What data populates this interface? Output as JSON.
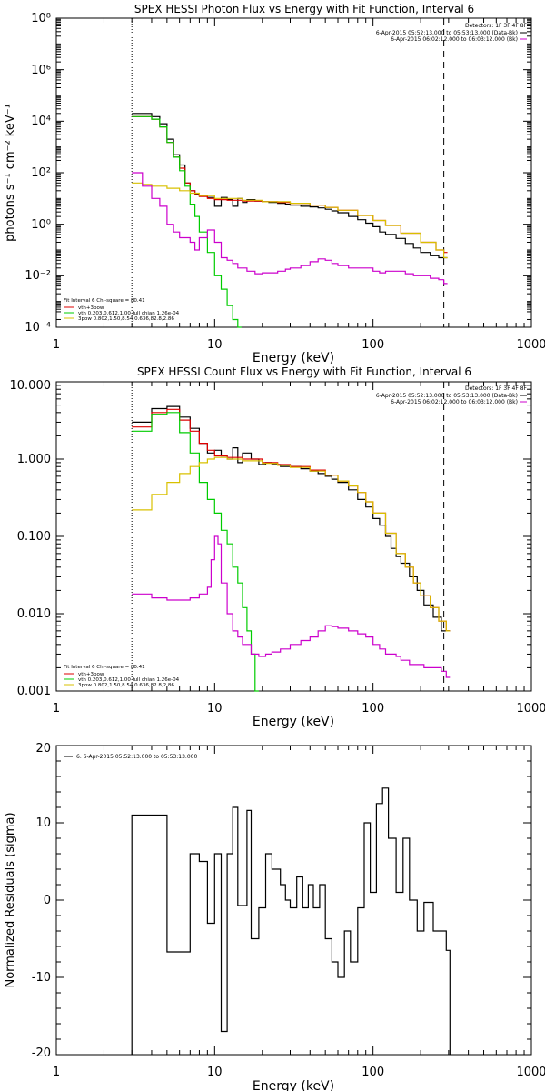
{
  "chart_data": [
    {
      "type": "line",
      "title": "SPEX HESSI Photon Flux vs Energy with Fit Function, Interval 6",
      "xlabel": "Energy (keV)",
      "ylabel": "photons s⁻¹ cm⁻² keV⁻¹",
      "xscale": "log",
      "yscale": "log",
      "xlim": [
        1,
        1000
      ],
      "ylim": [
        0.0001,
        100000000
      ],
      "x_ticks": [
        "1",
        "10",
        "100",
        "1000"
      ],
      "y_ticks": [
        "10⁻⁴",
        "10⁻²",
        "10⁰",
        "10²",
        "10⁴",
        "10⁶",
        "10⁸"
      ],
      "vlines": [
        {
          "x": 3.0,
          "style": "dotted"
        },
        {
          "x": 280,
          "style": "dashed"
        }
      ],
      "legend_topright": [
        "Detectors: 1F 3F 4F 8F",
        "6-Apr-2015 05:52:13.000 to 05:53:13.000 (Data-Bk)",
        "6-Apr-2015 06:02:12.000 to 06:03:12.000 (Bk)"
      ],
      "legend_bottomleft": [
        "Fit Interval 6   Chi-square = 80.41",
        "vth+3pow",
        "vth 0.203,0.612,1.00  full chian 1.26e-04",
        "3pow 0.802,1.50,8.54,0.636,82.8,2.86"
      ],
      "series": [
        {
          "name": "6-Apr-2015 05:52:13.000 to 05:53:13.000 (Data-Bk)",
          "color": "#000000",
          "x": [
            3.0,
            3.5,
            4.0,
            4.5,
            5.0,
            5.5,
            6.0,
            6.5,
            7.0,
            7.5,
            8.0,
            9.0,
            10.0,
            11.0,
            12.0,
            13.0,
            14.0,
            15.0,
            16.0,
            18.0,
            20.0,
            22.0,
            25.0,
            28.0,
            30.0,
            35.0,
            40.0,
            45.0,
            50.0,
            55.0,
            60.0,
            70.0,
            80.0,
            90.0,
            100.0,
            110.0,
            120.0,
            140.0,
            160.0,
            180.0,
            200.0,
            230.0,
            260.0,
            280.0
          ],
          "y": [
            20000,
            20000,
            15000,
            8000,
            2000,
            500,
            200,
            40,
            20,
            15,
            13,
            11,
            5,
            11,
            9,
            5,
            10,
            7,
            9,
            8,
            7.5,
            7,
            6.5,
            6,
            5.5,
            5,
            4.7,
            4.3,
            3.8,
            3.3,
            2.8,
            2,
            1.5,
            1.1,
            0.8,
            0.5,
            0.4,
            0.28,
            0.18,
            0.12,
            0.08,
            0.06,
            0.05,
            0.05
          ]
        },
        {
          "name": "vth+3pow",
          "color": "#dd0000",
          "x": [
            3.0,
            3.5,
            4.0,
            4.5,
            5.0,
            5.5,
            6.0,
            6.5,
            7.0,
            7.5,
            8.0,
            9.0,
            10.0,
            12.0,
            15.0,
            20.0,
            25.0,
            30.0,
            40.0,
            50.0,
            60.0,
            80.0,
            100.0,
            120.0,
            150.0,
            200.0,
            250.0,
            280.0
          ],
          "y": [
            15000,
            15000,
            12000,
            6000,
            1500,
            400,
            150,
            40,
            20,
            14,
            12,
            10,
            9,
            8.5,
            8,
            7.5,
            7,
            6.5,
            5.5,
            4.5,
            3.5,
            2.2,
            1.4,
            0.9,
            0.45,
            0.2,
            0.1,
            0.08
          ]
        },
        {
          "name": "vth",
          "color": "#00cc00",
          "x": [
            3.0,
            3.5,
            4.0,
            4.5,
            5.0,
            5.5,
            6.0,
            6.5,
            7.0,
            7.5,
            8.0,
            9.0,
            10.0,
            11.0,
            12.0,
            13.0,
            14.0
          ],
          "y": [
            15000,
            15000,
            12000,
            6000,
            1500,
            400,
            120,
            30,
            6,
            2,
            0.5,
            0.08,
            0.01,
            0.003,
            0.0007,
            0.0002,
            0.0001
          ]
        },
        {
          "name": "3pow",
          "color": "#d8c000",
          "x": [
            3.0,
            3.5,
            4.0,
            5.0,
            6.0,
            7.0,
            8.0,
            10.0,
            15.0,
            20.0,
            30.0,
            40.0,
            50.0,
            60.0,
            80.0,
            100.0,
            120.0,
            150.0,
            200.0,
            250.0,
            280.0
          ],
          "y": [
            40,
            35,
            30,
            25,
            20,
            16,
            13,
            10,
            8.5,
            7.5,
            6.5,
            5.5,
            4.5,
            3.5,
            2.2,
            1.4,
            0.9,
            0.45,
            0.2,
            0.1,
            0.05
          ]
        },
        {
          "name": "6-Apr-2015 06:02:12.000 to 06:03:12.000 (Bk)",
          "color": "#cc00cc",
          "x": [
            3.0,
            3.5,
            4.0,
            4.5,
            5.0,
            5.5,
            6.0,
            6.5,
            7.0,
            7.5,
            8.0,
            9.0,
            10.0,
            11.0,
            12.0,
            13.0,
            14.0,
            15.0,
            16.0,
            18.0,
            20.0,
            22.0,
            25.0,
            28.0,
            30.0,
            35.0,
            40.0,
            45.0,
            50.0,
            55.0,
            60.0,
            70.0,
            80.0,
            90.0,
            100.0,
            110.0,
            120.0,
            140.0,
            160.0,
            180.0,
            200.0,
            230.0,
            260.0,
            280.0
          ],
          "y": [
            100,
            30,
            10,
            5,
            1,
            0.5,
            0.3,
            0.3,
            0.2,
            0.1,
            0.3,
            0.6,
            0.2,
            0.05,
            0.04,
            0.03,
            0.02,
            0.02,
            0.015,
            0.012,
            0.013,
            0.013,
            0.015,
            0.018,
            0.02,
            0.025,
            0.035,
            0.045,
            0.04,
            0.03,
            0.025,
            0.02,
            0.02,
            0.02,
            0.015,
            0.013,
            0.015,
            0.015,
            0.012,
            0.01,
            0.01,
            0.008,
            0.007,
            0.005
          ]
        }
      ]
    },
    {
      "type": "line",
      "title": "SPEX HESSI Count Flux vs Energy with Fit Function, Interval 6",
      "xlabel": "Energy (keV)",
      "ylabel": "",
      "xscale": "log",
      "yscale": "log",
      "xlim": [
        1,
        1000
      ],
      "ylim": [
        0.001,
        10
      ],
      "x_ticks": [
        "1",
        "10",
        "100",
        "1000"
      ],
      "y_ticks": [
        "0.001",
        "0.010",
        "0.100",
        "1.000",
        "10.000"
      ],
      "vlines": [
        {
          "x": 3.0,
          "style": "dotted"
        },
        {
          "x": 280,
          "style": "dashed"
        }
      ],
      "legend_topright": [
        "Detectors: 1F 3F 4F 8F",
        "6-Apr-2015 05:52:13.000 to 05:53:13.000 (Data-Bk)",
        "6-Apr-2015 06:02:12.000 to 06:03:12.000 (Bk)"
      ],
      "legend_bottomleft": [
        "Fit Interval 6   Chi-square = 80.41",
        "vth+3pow",
        "vth 0.203,0.612,1.00  full chian 1.26e-04",
        "3pow 0.802,1.50,8.54,0.636,82.8,2.86"
      ],
      "series": [
        {
          "name": "6-Apr-2015 05:52:13.000 to 05:53:13.000 (Data-Bk)",
          "color": "#000000",
          "x": [
            3.0,
            4.0,
            5.0,
            6.0,
            7.0,
            8.0,
            9.0,
            10.0,
            11.0,
            12.0,
            13.0,
            14.0,
            15.0,
            17.0,
            19.0,
            21.0,
            23.0,
            26.0,
            30.0,
            35.0,
            40.0,
            45.0,
            50.0,
            55.0,
            60.0,
            70.0,
            80.0,
            90.0,
            100.0,
            110.0,
            120.0,
            130.0,
            140.0,
            150.0,
            170.0,
            190.0,
            210.0,
            240.0,
            270.0,
            290.0
          ],
          "y": [
            3.0,
            4.5,
            4.8,
            3.5,
            2.5,
            1.6,
            1.2,
            1.3,
            1.1,
            1.0,
            1.4,
            0.9,
            1.2,
            1.0,
            0.85,
            0.9,
            0.85,
            0.8,
            0.8,
            0.75,
            0.7,
            0.65,
            0.6,
            0.55,
            0.5,
            0.4,
            0.3,
            0.24,
            0.17,
            0.14,
            0.1,
            0.07,
            0.055,
            0.045,
            0.03,
            0.02,
            0.013,
            0.009,
            0.006,
            0.006
          ]
        },
        {
          "name": "vth+3pow",
          "color": "#dd0000",
          "x": [
            3.0,
            4.0,
            5.0,
            6.0,
            7.0,
            8.0,
            9.0,
            10.0,
            12.0,
            15.0,
            20.0,
            25.0,
            30.0,
            40.0,
            50.0,
            60.0,
            70.0,
            80.0,
            90.0,
            100.0,
            120.0,
            140.0,
            160.0,
            180.0,
            200.0,
            230.0,
            260.0,
            290.0
          ],
          "y": [
            2.6,
            4.0,
            4.4,
            3.2,
            2.3,
            1.6,
            1.3,
            1.1,
            1.05,
            1.0,
            0.9,
            0.85,
            0.8,
            0.72,
            0.62,
            0.52,
            0.45,
            0.37,
            0.28,
            0.2,
            0.11,
            0.06,
            0.04,
            0.025,
            0.017,
            0.012,
            0.008,
            0.006
          ]
        },
        {
          "name": "vth",
          "color": "#00cc00",
          "x": [
            3.0,
            4.0,
            5.0,
            6.0,
            7.0,
            8.0,
            9.0,
            10.0,
            11.0,
            12.0,
            13.0,
            14.0,
            15.0,
            16.0,
            17.0,
            18.0
          ],
          "y": [
            2.3,
            3.8,
            4.0,
            2.2,
            1.2,
            0.5,
            0.3,
            0.2,
            0.12,
            0.08,
            0.04,
            0.025,
            0.012,
            0.006,
            0.003,
            0.001
          ]
        },
        {
          "name": "3pow",
          "color": "#d8c000",
          "x": [
            3.0,
            4.0,
            5.0,
            6.0,
            7.0,
            8.0,
            9.0,
            10.0,
            12.0,
            15.0,
            20.0,
            25.0,
            30.0,
            40.0,
            50.0,
            60.0,
            70.0,
            80.0,
            90.0,
            100.0,
            120.0,
            140.0,
            160.0,
            180.0,
            200.0,
            230.0,
            260.0,
            290.0
          ],
          "y": [
            0.22,
            0.35,
            0.5,
            0.65,
            0.8,
            0.9,
            1.0,
            1.05,
            1.0,
            0.95,
            0.88,
            0.83,
            0.78,
            0.7,
            0.62,
            0.52,
            0.45,
            0.37,
            0.28,
            0.2,
            0.11,
            0.06,
            0.04,
            0.025,
            0.017,
            0.012,
            0.008,
            0.006
          ]
        },
        {
          "name": "6-Apr-2015 06:02:12.000 to 06:03:12.000 (Bk)",
          "color": "#cc00cc",
          "x": [
            3.0,
            4.0,
            5.0,
            6.0,
            7.0,
            8.0,
            9.0,
            9.5,
            10.0,
            10.5,
            11.0,
            12.0,
            13.0,
            14.0,
            15.0,
            17.0,
            19.0,
            21.0,
            23.0,
            26.0,
            30.0,
            35.0,
            40.0,
            45.0,
            50.0,
            55.0,
            60.0,
            70.0,
            80.0,
            90.0,
            100.0,
            110.0,
            120.0,
            130.0,
            140.0,
            150.0,
            170.0,
            190.0,
            210.0,
            240.0,
            270.0,
            290.0
          ],
          "y": [
            0.018,
            0.016,
            0.015,
            0.015,
            0.016,
            0.018,
            0.022,
            0.05,
            0.1,
            0.08,
            0.025,
            0.01,
            0.006,
            0.005,
            0.004,
            0.003,
            0.0028,
            0.003,
            0.0032,
            0.0035,
            0.004,
            0.0045,
            0.005,
            0.006,
            0.007,
            0.0068,
            0.0065,
            0.006,
            0.0055,
            0.005,
            0.004,
            0.0035,
            0.003,
            0.003,
            0.0028,
            0.0025,
            0.0022,
            0.0022,
            0.002,
            0.002,
            0.0018,
            0.0015
          ]
        }
      ]
    },
    {
      "type": "line",
      "title": "",
      "xlabel": "Energy (keV)",
      "ylabel": "Normalized Residuals (sigma)",
      "xscale": "log",
      "yscale": "linear",
      "xlim": [
        1,
        1000
      ],
      "ylim": [
        -20,
        20
      ],
      "x_ticks": [
        "1",
        "10",
        "100",
        "1000"
      ],
      "y_ticks": [
        "20",
        "10",
        "0",
        "-10",
        "-20"
      ],
      "legend": "6.  6-Apr-2015 05:52:13.000 to 05:53:13.000",
      "series": [
        {
          "name": "6.  6-Apr-2015 05:52:13.000 to 05:53:13.000",
          "color": "#000000",
          "x": [
            3.0,
            4.0,
            5.0,
            6.0,
            7.0,
            8.0,
            9.0,
            10.0,
            11.0,
            12.0,
            13.0,
            14.0,
            15.0,
            16.0,
            17.0,
            19.0,
            21.0,
            23.0,
            26.0,
            28.0,
            30.0,
            33.0,
            36.0,
            39.0,
            42.0,
            46.0,
            50.0,
            55.0,
            60.0,
            66.0,
            72.0,
            80.0,
            88.0,
            96.0,
            105.0,
            115.0,
            125.0,
            140.0,
            155.0,
            170.0,
            190.0,
            210.0,
            240.0,
            270.0,
            290.0
          ],
          "y": [
            11,
            11,
            -6.7,
            -6.7,
            6,
            5,
            -3,
            6,
            -17,
            6,
            12,
            -0.7,
            -0.7,
            11.6,
            -5,
            -1,
            6,
            4,
            2,
            0,
            -1,
            3,
            -1,
            2,
            -1,
            2,
            -5,
            -8,
            -10,
            -4,
            -8,
            -1,
            10,
            1,
            12.5,
            14.5,
            8,
            1,
            8,
            0,
            -4,
            -0.3,
            -4,
            -4,
            -6.5
          ]
        }
      ]
    }
  ]
}
